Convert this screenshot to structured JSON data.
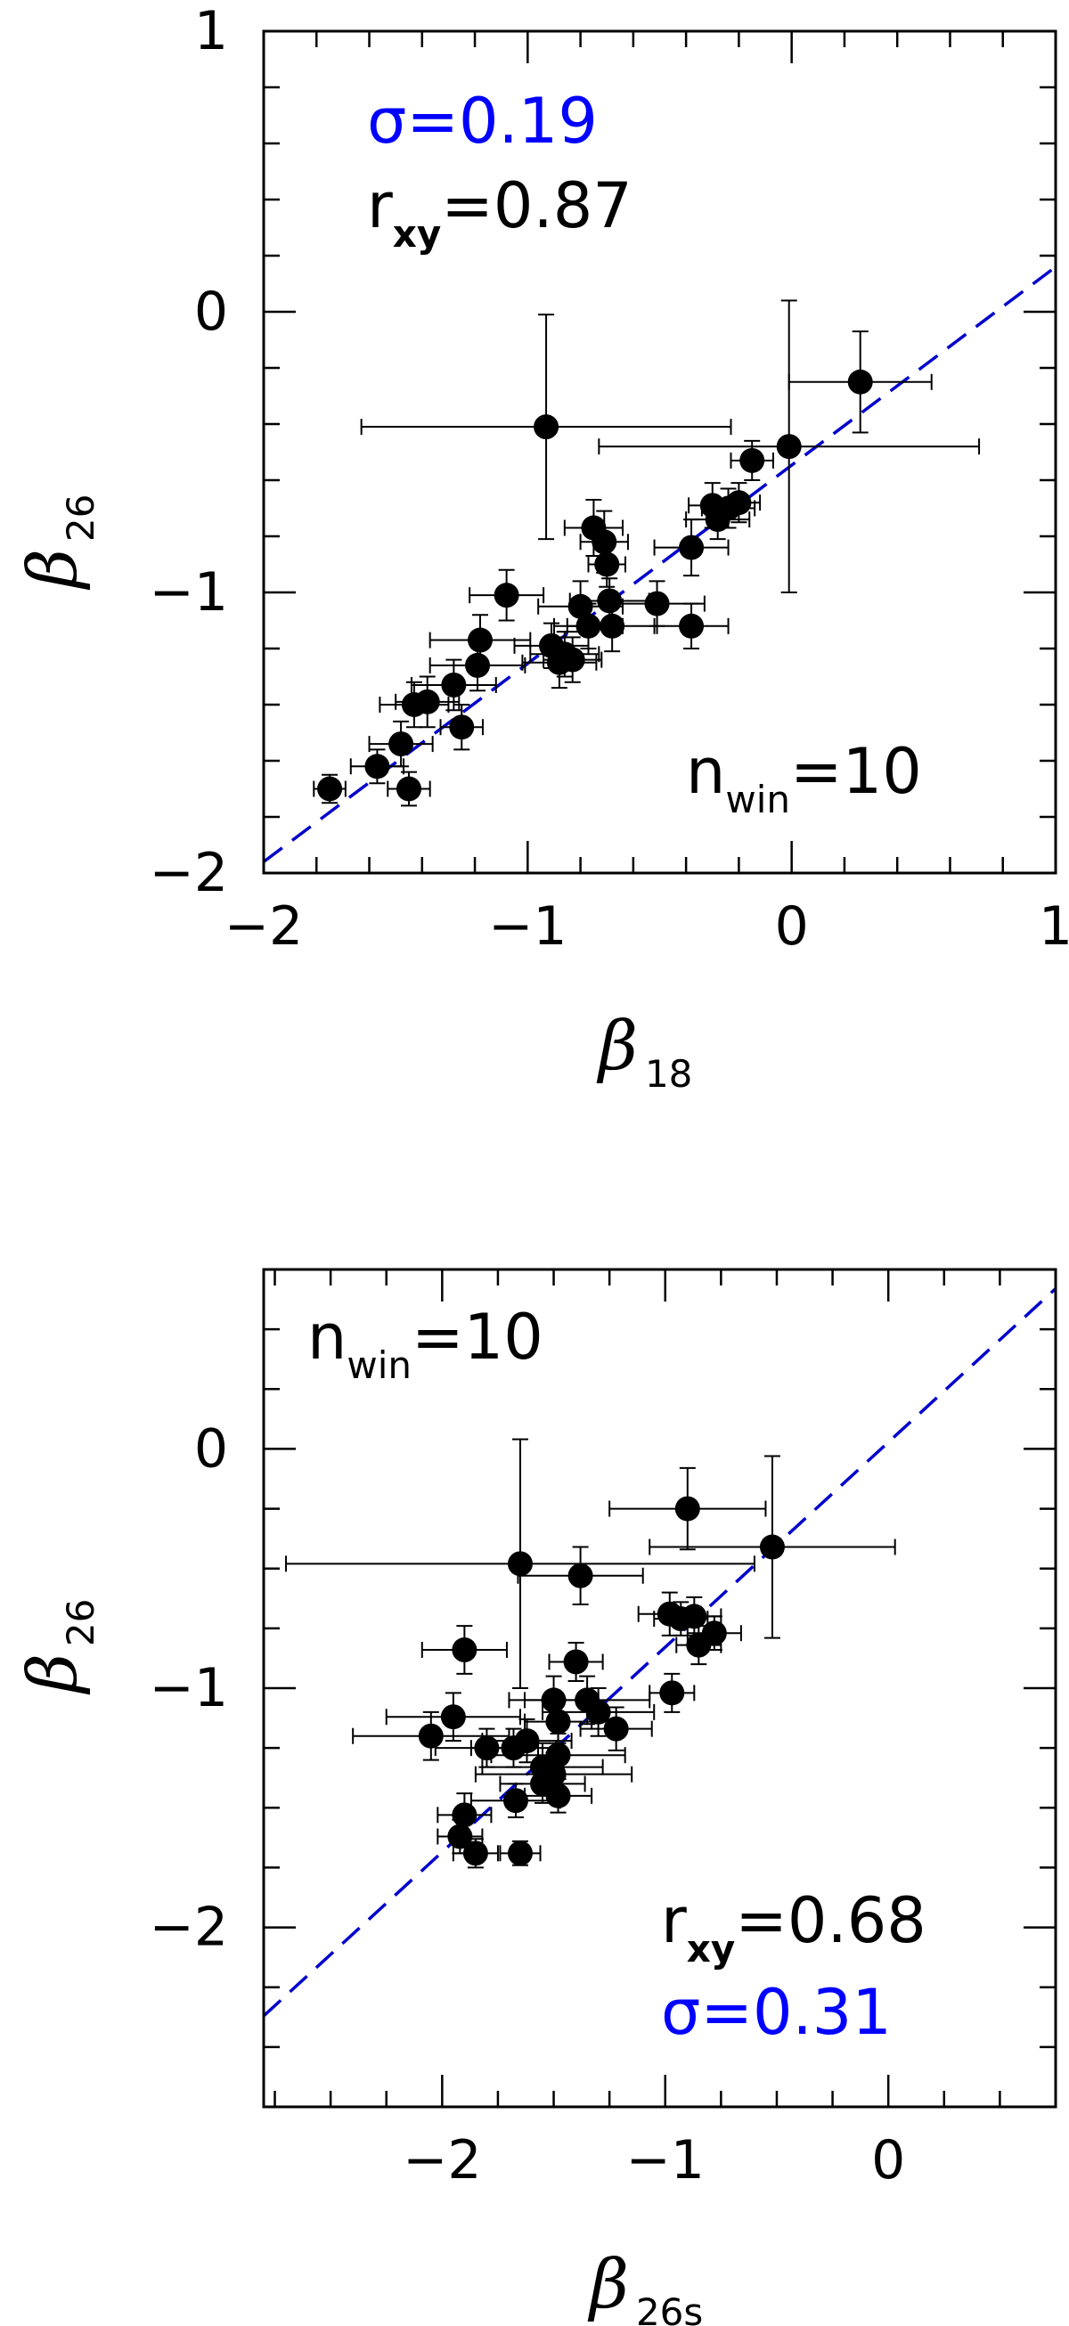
{
  "colors": {
    "fit_line": "#0000cc",
    "points": "#000000",
    "sigma_text": "#0000ff"
  },
  "chart_data": [
    {
      "type": "scatter",
      "xlabel": {
        "symbol": "β",
        "sub": "18"
      },
      "ylabel": {
        "symbol": "β",
        "sub": "26"
      },
      "xlim": [
        -2,
        1
      ],
      "ylim": [
        -2,
        1
      ],
      "xticks": [
        -2,
        -1,
        0,
        1
      ],
      "xtick_labels": [
        "−2",
        "−1",
        "0",
        "1"
      ],
      "yticks": [
        -2,
        -1,
        0,
        1
      ],
      "ytick_labels": [
        "−2",
        "−1",
        "0",
        "1"
      ],
      "annotations": {
        "sigma": {
          "text": "σ=0.19",
          "pos": "top-left",
          "color": "blue"
        },
        "rxy": {
          "main": "r",
          "sub": "xy",
          "value": "=0.87",
          "pos": "top-left"
        },
        "nwin": {
          "main": "n",
          "sub": "win",
          "value": "=10",
          "pos": "bottom-right"
        }
      },
      "fit_line": {
        "style": "dashed",
        "x": [
          -2,
          1
        ],
        "y": [
          -1.96,
          0.16
        ]
      },
      "points": [
        {
          "x": 0.26,
          "y": -0.25,
          "xerr": 0.27,
          "yerr": 0.18
        },
        {
          "x": -0.01,
          "y": -0.48,
          "xerr": 0.72,
          "yerr": 0.52
        },
        {
          "x": -0.93,
          "y": -0.41,
          "xerr": 0.7,
          "yerr": 0.4
        },
        {
          "x": -0.15,
          "y": -0.53,
          "xerr": 0.08,
          "yerr": 0.07
        },
        {
          "x": -0.3,
          "y": -0.69,
          "xerr": 0.09,
          "yerr": 0.08
        },
        {
          "x": -0.24,
          "y": -0.7,
          "xerr": 0.1,
          "yerr": 0.07
        },
        {
          "x": -0.2,
          "y": -0.68,
          "xerr": 0.08,
          "yerr": 0.07
        },
        {
          "x": -0.28,
          "y": -0.74,
          "xerr": 0.12,
          "yerr": 0.07
        },
        {
          "x": -0.38,
          "y": -0.84,
          "xerr": 0.14,
          "yerr": 0.1
        },
        {
          "x": -0.38,
          "y": -1.12,
          "xerr": 0.14,
          "yerr": 0.08
        },
        {
          "x": -0.51,
          "y": -1.04,
          "xerr": 0.18,
          "yerr": 0.08
        },
        {
          "x": -0.75,
          "y": -0.77,
          "xerr": 0.11,
          "yerr": 0.1
        },
        {
          "x": -0.71,
          "y": -0.82,
          "xerr": 0.09,
          "yerr": 0.11
        },
        {
          "x": -0.7,
          "y": -0.9,
          "xerr": 0.07,
          "yerr": 0.08
        },
        {
          "x": -0.69,
          "y": -1.03,
          "xerr": 0.15,
          "yerr": 0.08
        },
        {
          "x": -0.8,
          "y": -1.05,
          "xerr": 0.16,
          "yerr": 0.09
        },
        {
          "x": -0.77,
          "y": -1.12,
          "xerr": 0.13,
          "yerr": 0.08
        },
        {
          "x": -0.68,
          "y": -1.12,
          "xerr": 0.17,
          "yerr": 0.09
        },
        {
          "x": -0.91,
          "y": -1.19,
          "xerr": 0.14,
          "yerr": 0.08
        },
        {
          "x": -0.86,
          "y": -1.22,
          "xerr": 0.13,
          "yerr": 0.08
        },
        {
          "x": -0.83,
          "y": -1.24,
          "xerr": 0.11,
          "yerr": 0.08
        },
        {
          "x": -0.88,
          "y": -1.25,
          "xerr": 0.14,
          "yerr": 0.09
        },
        {
          "x": -1.08,
          "y": -1.01,
          "xerr": 0.14,
          "yerr": 0.09
        },
        {
          "x": -1.18,
          "y": -1.17,
          "xerr": 0.19,
          "yerr": 0.09
        },
        {
          "x": -1.19,
          "y": -1.26,
          "xerr": 0.18,
          "yerr": 0.09
        },
        {
          "x": -1.28,
          "y": -1.33,
          "xerr": 0.16,
          "yerr": 0.09
        },
        {
          "x": -1.25,
          "y": -1.48,
          "xerr": 0.08,
          "yerr": 0.08
        },
        {
          "x": -1.38,
          "y": -1.39,
          "xerr": 0.12,
          "yerr": 0.09
        },
        {
          "x": -1.43,
          "y": -1.4,
          "xerr": 0.13,
          "yerr": 0.08
        },
        {
          "x": -1.48,
          "y": -1.54,
          "xerr": 0.12,
          "yerr": 0.08
        },
        {
          "x": -1.57,
          "y": -1.62,
          "xerr": 0.1,
          "yerr": 0.06
        },
        {
          "x": -1.45,
          "y": -1.7,
          "xerr": 0.08,
          "yerr": 0.06
        },
        {
          "x": -1.75,
          "y": -1.7,
          "xerr": 0.06,
          "yerr": 0.05
        }
      ]
    },
    {
      "type": "scatter",
      "xlabel": {
        "symbol": "β",
        "sub": "26s"
      },
      "ylabel": {
        "symbol": "β",
        "sub": "26"
      },
      "xlim": [
        -2.8,
        0.75
      ],
      "ylim": [
        -2.75,
        0.75
      ],
      "xticks": [
        -2,
        -1,
        0
      ],
      "xtick_labels": [
        "−2",
        "−1",
        "0"
      ],
      "yticks": [
        -2,
        -1,
        0
      ],
      "ytick_labels": [
        "−2",
        "−1",
        "0"
      ],
      "annotations": {
        "nwin": {
          "main": "n",
          "sub": "win",
          "value": "=10",
          "pos": "top-left"
        },
        "rxy": {
          "main": "r",
          "sub": "xy",
          "value": "=0.68",
          "pos": "bottom-right"
        },
        "sigma": {
          "text": "σ=0.31",
          "pos": "bottom-right",
          "color": "blue"
        }
      },
      "fit_line": {
        "style": "dashed",
        "x": [
          -2.8,
          0.75
        ],
        "y": [
          -2.37,
          0.67
        ]
      },
      "points": [
        {
          "x": -0.9,
          "y": -0.25,
          "xerr": 0.35,
          "yerr": 0.17
        },
        {
          "x": -0.52,
          "y": -0.41,
          "xerr": 0.55,
          "yerr": 0.38
        },
        {
          "x": -1.65,
          "y": -0.48,
          "xerr": 1.05,
          "yerr": 0.52
        },
        {
          "x": -1.38,
          "y": -0.53,
          "xerr": 0.28,
          "yerr": 0.12
        },
        {
          "x": -0.98,
          "y": -0.69,
          "xerr": 0.14,
          "yerr": 0.09
        },
        {
          "x": -0.93,
          "y": -0.71,
          "xerr": 0.12,
          "yerr": 0.07
        },
        {
          "x": -0.87,
          "y": -0.7,
          "xerr": 0.12,
          "yerr": 0.08
        },
        {
          "x": -0.78,
          "y": -0.77,
          "xerr": 0.12,
          "yerr": 0.07
        },
        {
          "x": -0.85,
          "y": -0.82,
          "xerr": 0.1,
          "yerr": 0.08
        },
        {
          "x": -1.9,
          "y": -0.84,
          "xerr": 0.19,
          "yerr": 0.1
        },
        {
          "x": -1.4,
          "y": -0.89,
          "xerr": 0.12,
          "yerr": 0.08
        },
        {
          "x": -0.97,
          "y": -1.02,
          "xerr": 0.1,
          "yerr": 0.08
        },
        {
          "x": -1.35,
          "y": -1.05,
          "xerr": 0.28,
          "yerr": 0.1
        },
        {
          "x": -1.5,
          "y": -1.05,
          "xerr": 0.2,
          "yerr": 0.1
        },
        {
          "x": -1.3,
          "y": -1.1,
          "xerr": 0.25,
          "yerr": 0.1
        },
        {
          "x": -1.48,
          "y": -1.14,
          "xerr": 0.15,
          "yerr": 0.09
        },
        {
          "x": -1.22,
          "y": -1.17,
          "xerr": 0.16,
          "yerr": 0.09
        },
        {
          "x": -1.95,
          "y": -1.12,
          "xerr": 0.3,
          "yerr": 0.1
        },
        {
          "x": -2.05,
          "y": -1.2,
          "xerr": 0.35,
          "yerr": 0.1
        },
        {
          "x": -1.8,
          "y": -1.25,
          "xerr": 0.23,
          "yerr": 0.08
        },
        {
          "x": -1.68,
          "y": -1.25,
          "xerr": 0.19,
          "yerr": 0.08
        },
        {
          "x": -1.62,
          "y": -1.22,
          "xerr": 0.2,
          "yerr": 0.09
        },
        {
          "x": -1.55,
          "y": -1.33,
          "xerr": 0.27,
          "yerr": 0.1
        },
        {
          "x": -1.48,
          "y": -1.28,
          "xerr": 0.3,
          "yerr": 0.09
        },
        {
          "x": -1.5,
          "y": -1.36,
          "xerr": 0.35,
          "yerr": 0.09
        },
        {
          "x": -1.55,
          "y": -1.4,
          "xerr": 0.19,
          "yerr": 0.08
        },
        {
          "x": -1.48,
          "y": -1.45,
          "xerr": 0.15,
          "yerr": 0.07
        },
        {
          "x": -1.67,
          "y": -1.47,
          "xerr": 0.2,
          "yerr": 0.07
        },
        {
          "x": -1.9,
          "y": -1.53,
          "xerr": 0.12,
          "yerr": 0.09
        },
        {
          "x": -1.92,
          "y": -1.62,
          "xerr": 0.1,
          "yerr": 0.07
        },
        {
          "x": -1.85,
          "y": -1.69,
          "xerr": 0.1,
          "yerr": 0.06
        },
        {
          "x": -1.65,
          "y": -1.69,
          "xerr": 0.09,
          "yerr": 0.05
        }
      ]
    }
  ]
}
